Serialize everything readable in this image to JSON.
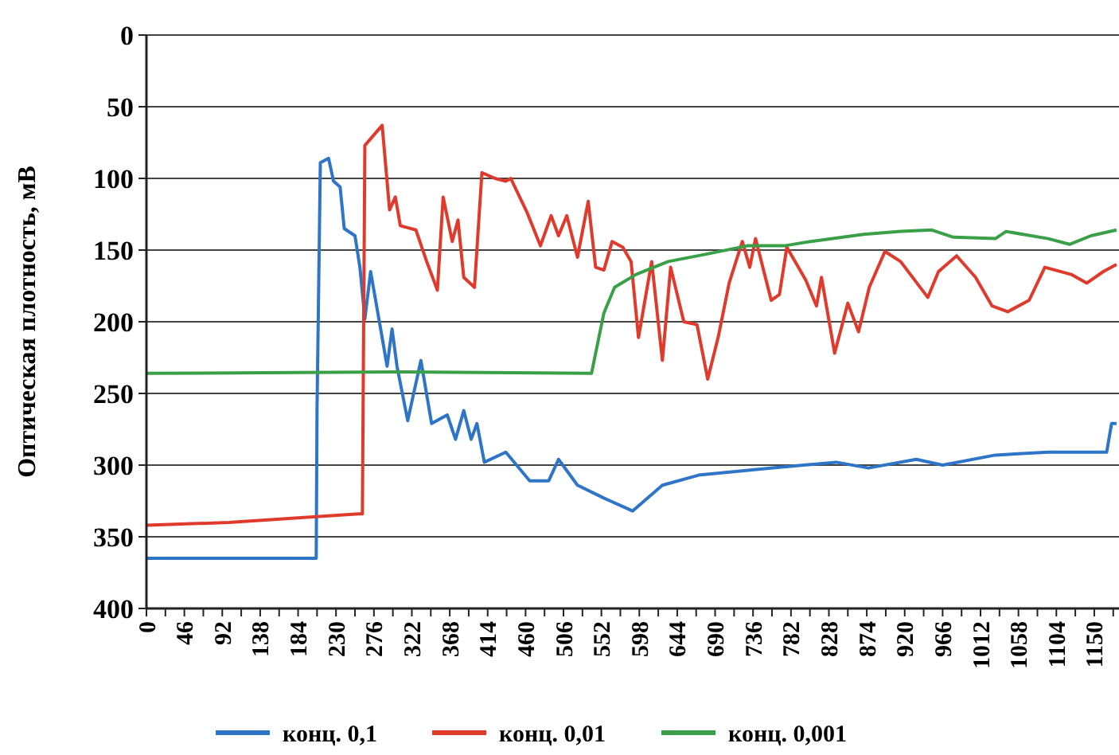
{
  "chart_data": {
    "type": "line",
    "ylabel": "Оптическая плотность, мВ",
    "xlim": [
      0,
      1180
    ],
    "ylim": [
      400,
      0
    ],
    "yticks": [
      0,
      50,
      100,
      150,
      200,
      250,
      300,
      350,
      400
    ],
    "xticks": [
      0,
      46,
      92,
      138,
      184,
      230,
      276,
      322,
      368,
      414,
      460,
      506,
      552,
      598,
      644,
      690,
      736,
      782,
      828,
      874,
      920,
      966,
      1012,
      1058,
      1104,
      1150,
      {
        "value": 23,
        "label": null
      },
      {
        "value": 69,
        "label": null
      },
      {
        "value": 115,
        "label": null
      },
      {
        "value": 161,
        "label": null
      },
      {
        "value": 207,
        "label": null
      },
      {
        "value": 253,
        "label": null
      },
      {
        "value": 299,
        "label": null
      },
      {
        "value": 345,
        "label": null
      },
      {
        "value": 391,
        "label": null
      },
      {
        "value": 437,
        "label": null
      },
      {
        "value": 483,
        "label": null
      },
      {
        "value": 529,
        "label": null
      },
      {
        "value": 575,
        "label": null
      },
      {
        "value": 621,
        "label": null
      },
      {
        "value": 667,
        "label": null
      },
      {
        "value": 713,
        "label": null
      },
      {
        "value": 759,
        "label": null
      },
      {
        "value": 805,
        "label": null
      },
      {
        "value": 851,
        "label": null
      },
      {
        "value": 897,
        "label": null
      },
      {
        "value": 943,
        "label": null
      },
      {
        "value": 989,
        "label": null
      },
      {
        "value": 1035,
        "label": null
      },
      {
        "value": 1081,
        "label": null
      },
      {
        "value": 1127,
        "label": null
      },
      {
        "value": 1173,
        "label": null
      }
    ],
    "grid": "y",
    "legend": "bottom",
    "marker": "none",
    "line_style": "solid",
    "series": [
      {
        "name": "конц. 0,1",
        "color": "#2e75c8",
        "x": [
          0,
          206,
          207,
          211,
          221,
          227,
          235,
          240,
          253,
          259,
          265,
          272,
          282,
          292,
          298,
          304,
          317,
          333,
          346,
          365,
          375,
          385,
          394,
          401,
          410,
          436,
          465,
          488,
          500,
          523,
          555,
          590,
          626,
          670,
          760,
          837,
          876,
          934,
          966,
          1030,
          1094,
          1165,
          1171,
          1177
        ],
        "values": [
          365,
          365,
          260,
          89,
          86,
          102,
          106,
          135,
          140,
          162,
          198,
          165,
          198,
          231,
          205,
          231,
          269,
          227,
          271,
          265,
          282,
          262,
          282,
          271,
          298,
          291,
          311,
          311,
          296,
          314,
          323,
          332,
          314,
          307,
          302,
          298,
          302,
          296,
          300,
          293,
          291,
          291,
          271,
          271
        ]
      },
      {
        "name": "конц. 0,01",
        "color": "#e03a2c",
        "x": [
          0,
          100,
          257,
          262,
          265,
          286,
          295,
          302,
          308,
          327,
          340,
          353,
          360,
          371,
          378,
          385,
          398,
          407,
          423,
          436,
          442,
          462,
          478,
          491,
          500,
          510,
          523,
          536,
          545,
          555,
          565,
          578,
          588,
          597,
          613,
          626,
          636,
          652,
          668,
          681,
          694,
          707,
          723,
          732,
          739,
          758,
          768,
          777,
          800,
          813,
          819,
          835,
          851,
          864,
          877,
          896,
          915,
          948,
          961,
          983,
          1006,
          1026,
          1045,
          1071,
          1090,
          1122,
          1141,
          1161,
          1177
        ],
        "values": [
          342,
          340,
          334,
          334,
          77,
          63,
          122,
          113,
          133,
          136,
          158,
          178,
          113,
          144,
          129,
          169,
          176,
          96,
          100,
          102,
          100,
          124,
          147,
          126,
          140,
          126,
          155,
          116,
          162,
          164,
          144,
          148,
          158,
          211,
          158,
          227,
          162,
          200,
          202,
          240,
          210,
          173,
          144,
          162,
          142,
          185,
          181,
          148,
          171,
          189,
          169,
          222,
          187,
          207,
          176,
          151,
          158,
          183,
          165,
          154,
          169,
          189,
          193,
          185,
          162,
          167,
          173,
          165,
          160
        ]
      },
      {
        "name": "конц. 0,001",
        "color": "#3aa047",
        "x": [
          0,
          300,
          540,
          555,
          568,
          594,
          633,
          678,
          729,
          774,
          806,
          870,
          915,
          953,
          979,
          1030,
          1043,
          1094,
          1120,
          1146,
          1177
        ],
        "values": [
          236,
          235,
          236,
          194,
          176,
          167,
          158,
          153,
          147,
          147,
          144,
          139,
          137,
          136,
          141,
          142,
          137,
          142,
          146,
          140,
          136
        ]
      }
    ]
  }
}
